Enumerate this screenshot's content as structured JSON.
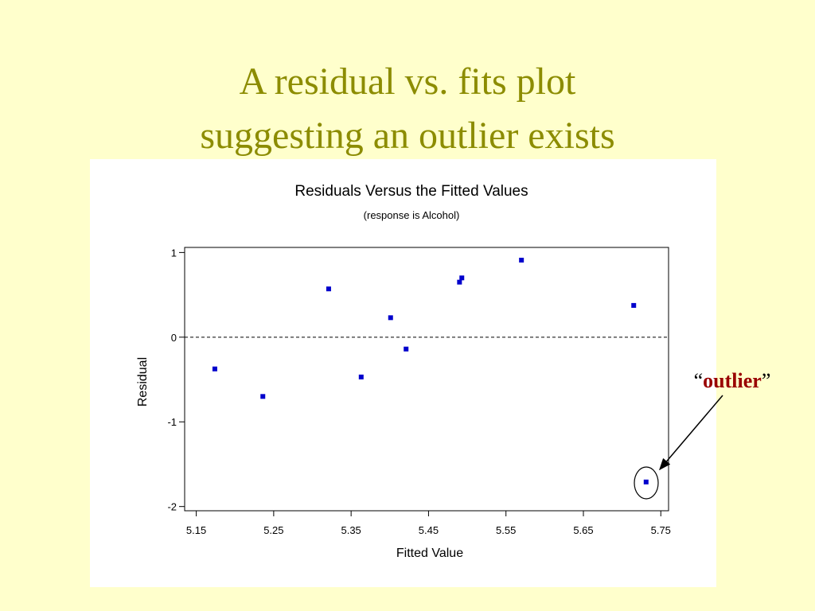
{
  "slide": {
    "title": [
      "A residual vs. fits plot",
      "suggesting an outlier exists"
    ],
    "annotation": {
      "open": "“",
      "text": "outlier",
      "close": "”"
    }
  },
  "chart_data": {
    "type": "scatter",
    "title": "Residuals Versus the Fitted Values",
    "subtitle": "(response is Alcohol)",
    "x_label": "Fitted Value",
    "y_label": "Residual",
    "x": [
      5.174,
      5.236,
      5.321,
      5.363,
      5.401,
      5.421,
      5.49,
      5.493,
      5.57,
      5.715,
      5.731
    ],
    "y": [
      -0.375,
      -0.7,
      0.57,
      -0.47,
      0.23,
      -0.14,
      0.65,
      0.7,
      0.91,
      0.375,
      -1.71
    ],
    "color": "#0000cc",
    "xlim": [
      5.135,
      5.76
    ],
    "ylim": [
      -2.05,
      1.06
    ],
    "xticks": [
      5.15,
      5.25,
      5.35,
      5.45,
      5.55,
      5.65,
      5.75
    ],
    "yticks": [
      1,
      0,
      -1,
      -2
    ],
    "hline": 0
  }
}
